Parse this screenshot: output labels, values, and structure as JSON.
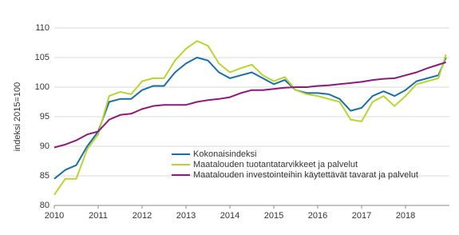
{
  "chart_data": {
    "type": "line",
    "y_label": "indeksi 2015=100",
    "x": [
      2010,
      2010.25,
      2010.5,
      2010.75,
      2011,
      2011.25,
      2011.5,
      2011.75,
      2012,
      2012.25,
      2012.5,
      2012.75,
      2013,
      2013.25,
      2013.5,
      2013.75,
      2014,
      2014.25,
      2014.5,
      2014.75,
      2015,
      2015.25,
      2015.5,
      2015.75,
      2016,
      2016.25,
      2016.5,
      2016.75,
      2017,
      2017.25,
      2017.5,
      2017.75,
      2018,
      2018.25,
      2018.5,
      2018.75,
      2018.92
    ],
    "series": [
      {
        "name": "Kokonaisindeksi",
        "color": "#1a6fa6",
        "values": [
          84.5,
          86,
          86.8,
          90,
          92.5,
          97.5,
          98,
          98,
          99.5,
          100.2,
          100.2,
          102.5,
          104,
          105,
          104.5,
          102.5,
          101.5,
          102,
          102.5,
          101.5,
          100.5,
          101.2,
          99.5,
          99,
          99,
          98.8,
          98,
          96,
          96.5,
          98.5,
          99.3,
          98.5,
          99.5,
          101,
          101.5,
          102,
          105
        ]
      },
      {
        "name": "Maatalouden tuotantatarvikkeet ja palvelut",
        "color": "#b8d433",
        "values": [
          81.8,
          84.5,
          84.5,
          89.5,
          92,
          98.5,
          99.2,
          98.8,
          101,
          101.5,
          101.5,
          104.5,
          106.5,
          107.8,
          107,
          104,
          102.5,
          103.2,
          103.8,
          102,
          101,
          101.7,
          99.5,
          98.8,
          98.5,
          98,
          97.5,
          94.5,
          94.2,
          97.5,
          98.5,
          96.8,
          98.5,
          100.5,
          101,
          101.5,
          105.5
        ]
      },
      {
        "name": "Maatalouden investointeihin käytettävät tavarat ja palvelut",
        "color": "#8c1a78",
        "values": [
          89.8,
          90.3,
          91,
          92,
          92.5,
          94.5,
          95.3,
          95.5,
          96.3,
          96.8,
          97,
          97,
          97,
          97.5,
          97.8,
          98,
          98.3,
          99,
          99.5,
          99.5,
          99.7,
          99.9,
          100,
          100,
          100.2,
          100.3,
          100.5,
          100.7,
          100.9,
          101.2,
          101.4,
          101.5,
          102,
          102.5,
          103.2,
          103.8,
          104.2
        ]
      }
    ],
    "xlim": [
      2010,
      2019
    ],
    "xticks": [
      2010,
      2011,
      2012,
      2013,
      2014,
      2015,
      2016,
      2017,
      2018
    ],
    "ylim": [
      80,
      110
    ],
    "yticks": [
      80,
      85,
      90,
      95,
      100,
      105,
      110
    ],
    "grid": true
  }
}
